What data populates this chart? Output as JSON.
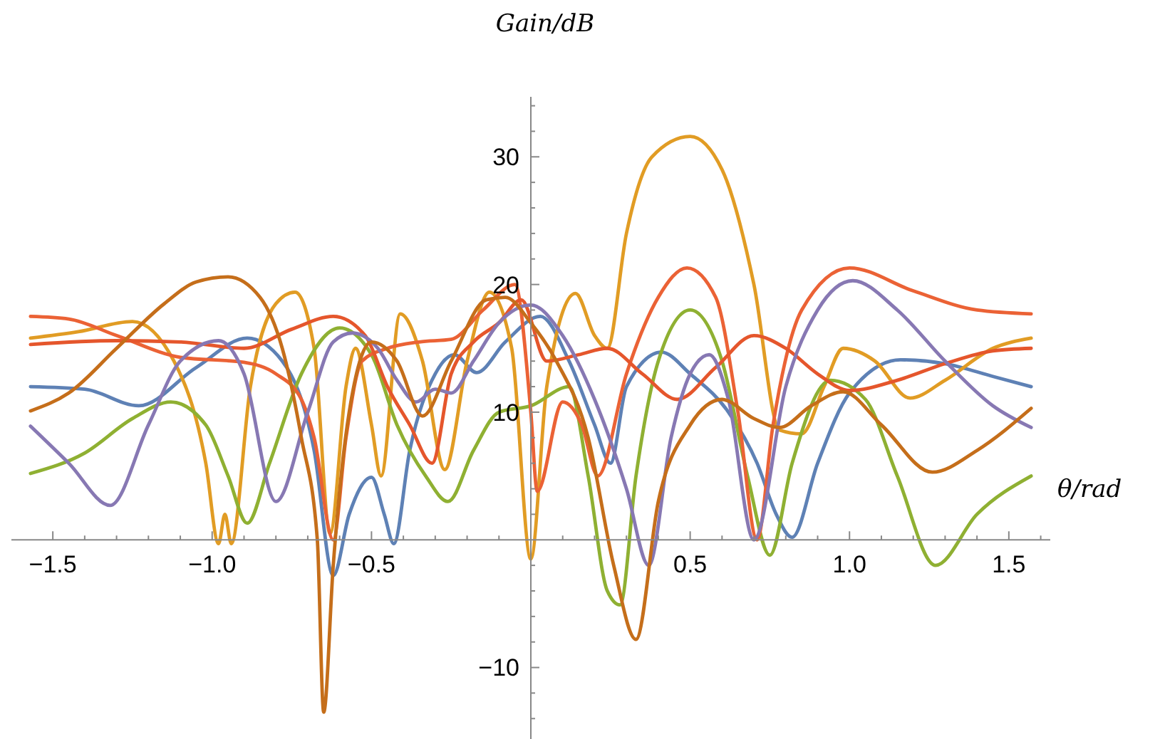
{
  "chart_data": {
    "type": "line",
    "xlabel": "θ/rad",
    "ylabel": "Gain/dB",
    "xlim": [
      -1.63,
      1.63
    ],
    "ylim": [
      -15.6,
      34.7
    ],
    "xticks": [
      {
        "value": -1.5,
        "label": "−1.5"
      },
      {
        "value": -1.4,
        "label": null
      },
      {
        "value": -1.3,
        "label": null
      },
      {
        "value": -1.2,
        "label": null
      },
      {
        "value": -1.1,
        "label": null
      },
      {
        "value": -1.0,
        "label": "−1.0"
      },
      {
        "value": -0.9,
        "label": null
      },
      {
        "value": -0.8,
        "label": null
      },
      {
        "value": -0.7,
        "label": null
      },
      {
        "value": -0.6,
        "label": null
      },
      {
        "value": -0.5,
        "label": "−0.5"
      },
      {
        "value": -0.4,
        "label": null
      },
      {
        "value": -0.3,
        "label": null
      },
      {
        "value": -0.2,
        "label": null
      },
      {
        "value": -0.1,
        "label": null
      },
      {
        "value": 0.1,
        "label": null
      },
      {
        "value": 0.2,
        "label": null
      },
      {
        "value": 0.3,
        "label": null
      },
      {
        "value": 0.4,
        "label": null
      },
      {
        "value": 0.5,
        "label": "0.5"
      },
      {
        "value": 0.6,
        "label": null
      },
      {
        "value": 0.7,
        "label": null
      },
      {
        "value": 0.8,
        "label": null
      },
      {
        "value": 0.9,
        "label": null
      },
      {
        "value": 1.0,
        "label": "1.0"
      },
      {
        "value": 1.1,
        "label": null
      },
      {
        "value": 1.2,
        "label": null
      },
      {
        "value": 1.3,
        "label": null
      },
      {
        "value": 1.4,
        "label": null
      },
      {
        "value": 1.5,
        "label": "1.5"
      },
      {
        "value": 1.6,
        "label": null
      }
    ],
    "yticks": [
      {
        "value": -14,
        "label": null
      },
      {
        "value": -12,
        "label": null
      },
      {
        "value": -10,
        "label": "−10"
      },
      {
        "value": -8,
        "label": null
      },
      {
        "value": -6,
        "label": null
      },
      {
        "value": -4,
        "label": null
      },
      {
        "value": -2,
        "label": null
      },
      {
        "value": 2,
        "label": null
      },
      {
        "value": 4,
        "label": null
      },
      {
        "value": 6,
        "label": null
      },
      {
        "value": 8,
        "label": null
      },
      10,
      {
        "value": 12,
        "label": null
      },
      {
        "value": 14,
        "label": null
      },
      {
        "value": 16,
        "label": null
      },
      {
        "value": 18,
        "label": null
      },
      20,
      {
        "value": 22,
        "label": null
      },
      {
        "value": 24,
        "label": null
      },
      {
        "value": 26,
        "label": null
      },
      {
        "value": 28,
        "label": null
      },
      30,
      {
        "value": 32,
        "label": null
      },
      {
        "value": 34,
        "label": null
      }
    ],
    "grid": false,
    "line_style": "solid",
    "series": [
      {
        "color": "#5e81b5",
        "x": [
          -1.57,
          -1.4,
          -1.23,
          -1.05,
          -0.89,
          -0.78,
          -0.68,
          -0.62,
          -0.57,
          -0.5,
          -0.46,
          -0.43,
          -0.38,
          -0.3,
          -0.24,
          -0.17,
          -0.08,
          0.03,
          0.12,
          0.2,
          0.25,
          0.3,
          0.41,
          0.5,
          0.62,
          0.71,
          0.77,
          0.82,
          0.9,
          1.0,
          1.16,
          1.3,
          1.45,
          1.57
        ],
        "values": [
          12,
          11.8,
          10.5,
          13.5,
          15.8,
          14,
          7,
          -2.8,
          2,
          4.9,
          2,
          -0.3,
          7,
          13,
          14.5,
          13.1,
          15.5,
          17.5,
          14,
          9,
          6,
          12,
          14.7,
          13,
          10,
          6,
          2,
          0.2,
          6,
          11.5,
          14.1,
          13.8,
          12.8,
          12
        ]
      },
      {
        "color": "#e19c24",
        "x": [
          -1.57,
          -1.42,
          -1.25,
          -1.12,
          -1.02,
          -0.98,
          -0.96,
          -0.94,
          -0.88,
          -0.8,
          -0.74,
          -0.68,
          -0.63,
          -0.58,
          -0.55,
          -0.5,
          -0.47,
          -0.41,
          -0.34,
          -0.27,
          -0.2,
          -0.13,
          -0.06,
          0.0,
          0.05,
          0.14,
          0.2,
          0.24,
          0.3,
          0.38,
          0.5,
          0.6,
          0.7,
          0.78,
          0.85,
          0.92,
          0.98,
          1.08,
          1.19,
          1.3,
          1.45,
          1.57
        ],
        "values": [
          15.8,
          16.3,
          17.1,
          14,
          6,
          -0.3,
          2,
          -0.3,
          12,
          18.5,
          19.4,
          15,
          0.5,
          12,
          15,
          9,
          5,
          17.7,
          14,
          5.5,
          14,
          19.4,
          15,
          -1.5,
          12,
          19.3,
          16,
          15,
          24,
          30,
          31.6,
          29,
          20,
          8.6,
          8.3,
          12,
          15,
          14,
          11.1,
          12.5,
          15,
          15.8
        ]
      },
      {
        "color": "#8fb032",
        "x": [
          -1.57,
          -1.4,
          -1.25,
          -1.13,
          -1.02,
          -0.95,
          -0.89,
          -0.82,
          -0.72,
          -0.6,
          -0.5,
          -0.42,
          -0.33,
          -0.26,
          -0.18,
          -0.1,
          0.0,
          0.12,
          0.18,
          0.24,
          0.28,
          0.33,
          0.4,
          0.5,
          0.6,
          0.68,
          0.75,
          0.82,
          0.94,
          1.05,
          1.15,
          1.27,
          1.4,
          1.57
        ],
        "values": [
          5.2,
          6.8,
          9.5,
          10.8,
          9,
          5,
          1.3,
          6,
          13,
          16.6,
          14.5,
          9,
          5,
          3,
          7,
          10,
          10.5,
          12,
          5,
          -4,
          -5.1,
          5,
          14,
          18,
          14,
          5,
          -1.2,
          6,
          12.5,
          11,
          5,
          -2,
          2,
          5
        ]
      },
      {
        "color": "#eb6235",
        "x": [
          -1.57,
          -1.45,
          -1.3,
          -1.1,
          -0.9,
          -0.8,
          -0.72,
          -0.68,
          -0.62,
          -0.58,
          -0.53,
          -0.45,
          -0.35,
          -0.25,
          -0.15,
          -0.05,
          0.0,
          0.02,
          0.1,
          0.16,
          0.21,
          0.3,
          0.4,
          0.49,
          0.58,
          0.65,
          0.71,
          0.76,
          0.85,
          1.0,
          1.2,
          1.4,
          1.57
        ],
        "values": [
          17.5,
          17.3,
          16,
          14.3,
          13.9,
          13,
          11,
          8,
          0,
          8,
          14,
          15,
          15.5,
          15.7,
          18,
          20,
          10,
          3.8,
          10.8,
          9,
          5,
          13,
          19,
          21.3,
          19,
          10,
          0,
          9,
          18,
          21.3,
          19.5,
          18,
          17.7
        ]
      },
      {
        "color": "#e5562c",
        "x": [
          -1.57,
          -1.3,
          -1.1,
          -0.9,
          -0.75,
          -0.62,
          -0.52,
          -0.45,
          -0.38,
          -0.31,
          -0.25,
          -0.18,
          -0.1,
          -0.03,
          0.05,
          0.15,
          0.24,
          0.35,
          0.46,
          0.58,
          0.7,
          0.8,
          0.9,
          1.0,
          1.15,
          1.3,
          1.45,
          1.57
        ],
        "values": [
          15.3,
          15.6,
          15.5,
          15,
          16.5,
          17.5,
          16,
          12,
          9,
          6,
          13,
          15.5,
          17,
          18.8,
          14,
          14.5,
          15,
          13,
          11,
          13.5,
          16,
          15,
          13,
          11.7,
          12.5,
          13.8,
          14.8,
          15
        ]
      },
      {
        "color": "#8778b3",
        "x": [
          -1.57,
          -1.45,
          -1.32,
          -1.2,
          -1.1,
          -0.98,
          -0.9,
          -0.8,
          -0.7,
          -0.62,
          -0.56,
          -0.48,
          -0.42,
          -0.36,
          -0.3,
          -0.25,
          -0.18,
          -0.1,
          0.0,
          0.1,
          0.2,
          0.3,
          0.37,
          0.44,
          0.5,
          0.56,
          0.62,
          0.7,
          0.8,
          0.9,
          1.01,
          1.15,
          1.3,
          1.45,
          1.57
        ],
        "values": [
          8.9,
          6,
          2.7,
          9,
          14,
          15.6,
          13,
          3,
          10,
          15.5,
          16.2,
          15,
          12.5,
          10.8,
          11.8,
          11.5,
          14,
          17,
          18.4,
          16,
          11,
          4,
          -2,
          8,
          13,
          14.5,
          11,
          0,
          12,
          18,
          20.3,
          18,
          14,
          10.5,
          8.8
        ]
      },
      {
        "color": "#c56e1a",
        "x": [
          -1.57,
          -1.45,
          -1.3,
          -1.15,
          -1.05,
          -0.95,
          -0.85,
          -0.78,
          -0.72,
          -0.67,
          -0.65,
          -0.62,
          -0.57,
          -0.5,
          -0.42,
          -0.34,
          -0.25,
          -0.14,
          -0.08,
          0.0,
          0.08,
          0.18,
          0.26,
          0.33,
          0.4,
          0.5,
          0.6,
          0.7,
          0.78,
          0.88,
          0.98,
          1.1,
          1.26,
          1.4,
          1.57
        ],
        "values": [
          10.1,
          11.5,
          15,
          18.5,
          20.2,
          20.6,
          19,
          15,
          8,
          0,
          -13.5,
          -2,
          10,
          15.5,
          14,
          9.7,
          14,
          18.8,
          19,
          17,
          14,
          8,
          -2,
          -7.8,
          3,
          9,
          11,
          9.5,
          8.8,
          10.5,
          11.6,
          9,
          5.3,
          7,
          10.3
        ]
      }
    ]
  }
}
